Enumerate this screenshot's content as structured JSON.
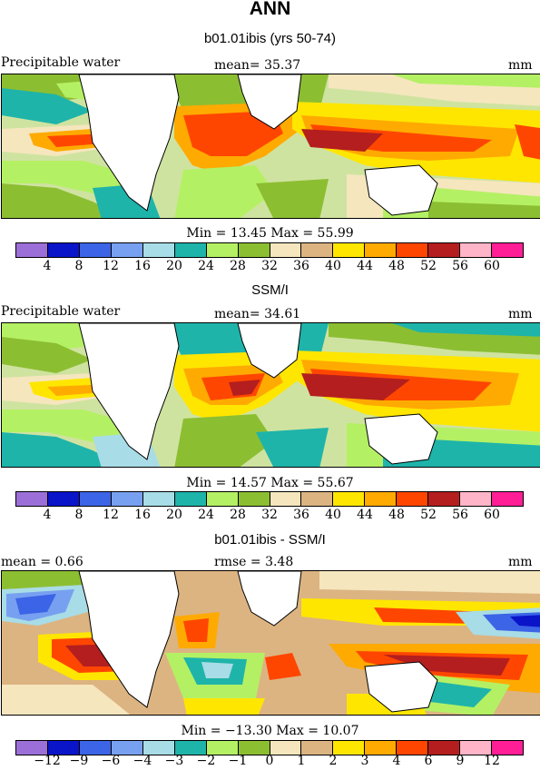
{
  "title": "ANN",
  "palette_abs": [
    "#9c6fd8",
    "#0a14c8",
    "#3c64e6",
    "#78a0f0",
    "#a8dce6",
    "#1eb4aa",
    "#b4f064",
    "#8cbe32",
    "#f5e6be",
    "#dcb482",
    "#ffe600",
    "#ffaa00",
    "#ff4600",
    "#b41e1e",
    "#ffb4c8",
    "#ff1e96"
  ],
  "palette_diff": [
    "#9c6fd8",
    "#0a14c8",
    "#3c64e6",
    "#78a0f0",
    "#a8dce6",
    "#1eb4aa",
    "#b4f064",
    "#8cbe32",
    "#f5e6be",
    "#dcb482",
    "#ffe600",
    "#ffaa00",
    "#ff4600",
    "#b41e1e",
    "#ffb4c8",
    "#ff1e96"
  ],
  "panels": [
    {
      "title": "b01.01ibis (yrs 50-74)",
      "left_label": "Precipitable water",
      "center_label": "mean=  35.37",
      "units": "mm",
      "stats": "Min =  13.45 Max =  55.99",
      "ticks": [
        "4",
        "8",
        "12",
        "16",
        "20",
        "24",
        "28",
        "32",
        "36",
        "40",
        "44",
        "48",
        "52",
        "56",
        "60"
      ]
    },
    {
      "title": "SSM/I",
      "left_label": "Precipitable water",
      "center_label": "mean=  34.61",
      "units": "mm",
      "stats": "Min =  14.57 Max =  55.67",
      "ticks": [
        "4",
        "8",
        "12",
        "16",
        "20",
        "24",
        "28",
        "32",
        "36",
        "40",
        "44",
        "48",
        "52",
        "56",
        "60"
      ]
    },
    {
      "title": "b01.01ibis - SSM/I",
      "left_label": "mean =    0.66",
      "center_label": "rmse =    3.48",
      "units": "mm",
      "stats": "Min = −13.30 Max =  10.07",
      "ticks": [
        "−12",
        "−9",
        "−6",
        "−4",
        "−3",
        "−2",
        "−1",
        "0",
        "1",
        "2",
        "3",
        "4",
        "6",
        "9",
        "12"
      ]
    }
  ]
}
